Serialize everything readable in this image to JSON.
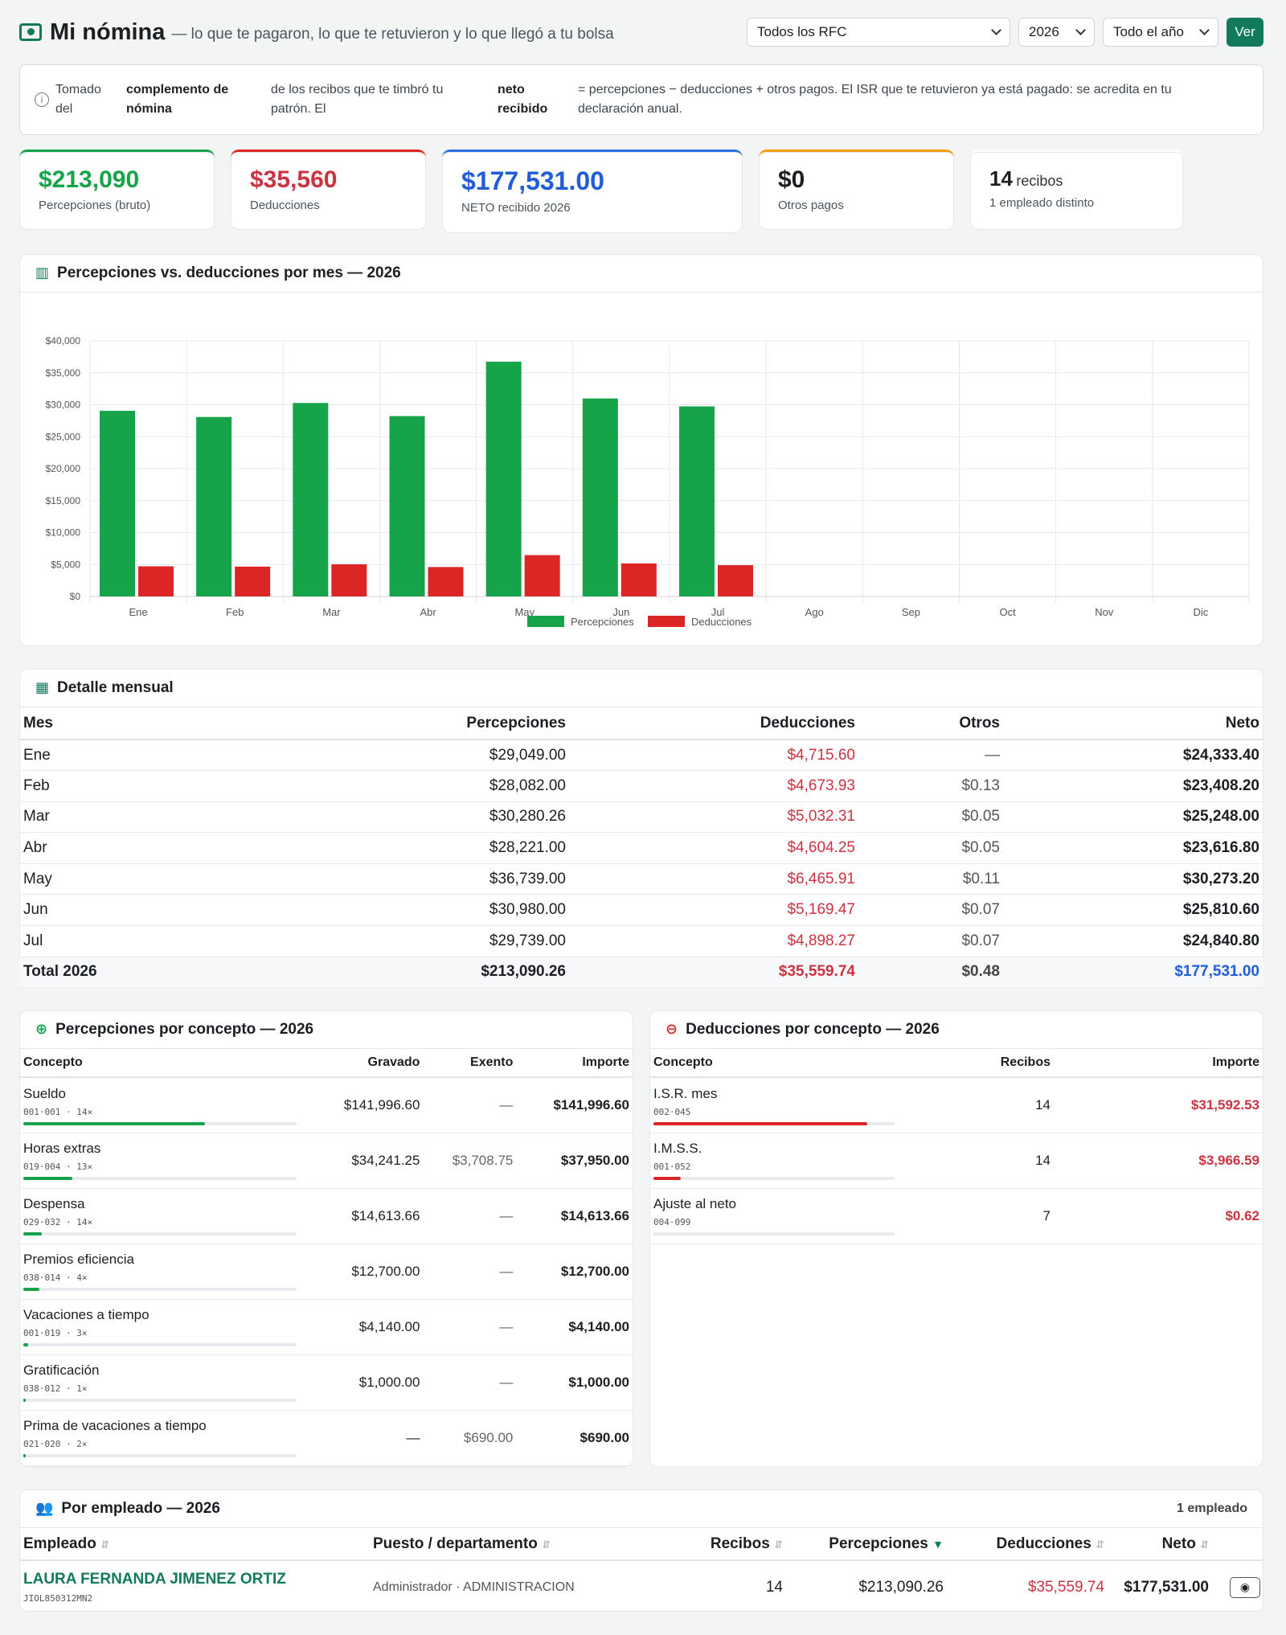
{
  "header": {
    "title": "Mi nómina",
    "subtitle": "— lo que te pagaron, lo que te retuvieron y lo que llegó a tu bolsa",
    "rfc_select": "Todos los RFC",
    "year_select": "2026",
    "period_select": "Todo el año",
    "ver_label": "Ver"
  },
  "info": {
    "c1": "Tomado del",
    "c2": "complemento de nómina",
    "c3": "de los recibos que te timbró tu patrón. El",
    "c4": "neto recibido",
    "c5": "= percepciones − deducciones + otros pagos. El ISR que te retuvieron ya está pagado: se acredita en tu declaración anual."
  },
  "cards": {
    "percepciones_value": "$213,090",
    "percepciones_label": "Percepciones (bruto)",
    "deducciones_value": "$35,560",
    "deducciones_label": "Deducciones",
    "neto_value": "$177,531.00",
    "neto_label": "NETO recibido 2026",
    "otros_value": "$0",
    "otros_label": "Otros pagos",
    "recibos_value": "14",
    "recibos_unit": "recibos",
    "recibos_label": "1 empleado distinto"
  },
  "chart_panel": {
    "title": "Percepciones vs. deducciones por mes — 2026"
  },
  "chart_data": {
    "type": "bar",
    "categories": [
      "Ene",
      "Feb",
      "Mar",
      "Abr",
      "May",
      "Jun",
      "Jul",
      "Ago",
      "Sep",
      "Oct",
      "Nov",
      "Dic"
    ],
    "series": [
      {
        "name": "Percepciones",
        "color": "#16a34a",
        "values": [
          29049,
          28082,
          30280.26,
          28221,
          36739,
          30980,
          29739,
          0,
          0,
          0,
          0,
          0
        ]
      },
      {
        "name": "Deducciones",
        "color": "#dc2626",
        "values": [
          4715.6,
          4673.93,
          5032.31,
          4604.25,
          6465.91,
          5169.47,
          4898.27,
          0,
          0,
          0,
          0,
          0
        ]
      }
    ],
    "y_ticks": [
      "$0",
      "$5,000",
      "$10,000",
      "$15,000",
      "$20,000",
      "$25,000",
      "$30,000",
      "$35,000",
      "$40,000"
    ],
    "ylim": [
      0,
      40000
    ],
    "legend": "bottom-center",
    "grid": true
  },
  "monthly": {
    "title": "Detalle mensual",
    "headers": [
      "Mes",
      "Percepciones",
      "Deducciones",
      "Otros",
      "Neto"
    ],
    "rows": [
      [
        "Ene",
        "$29,049.00",
        "$4,715.60",
        "—",
        "$24,333.40"
      ],
      [
        "Feb",
        "$28,082.00",
        "$4,673.93",
        "$0.13",
        "$23,408.20"
      ],
      [
        "Mar",
        "$30,280.26",
        "$5,032.31",
        "$0.05",
        "$25,248.00"
      ],
      [
        "Abr",
        "$28,221.00",
        "$4,604.25",
        "$0.05",
        "$23,616.80"
      ],
      [
        "May",
        "$36,739.00",
        "$6,465.91",
        "$0.11",
        "$30,273.20"
      ],
      [
        "Jun",
        "$30,980.00",
        "$5,169.47",
        "$0.07",
        "$25,810.60"
      ],
      [
        "Jul",
        "$29,739.00",
        "$4,898.27",
        "$0.07",
        "$24,840.80"
      ]
    ],
    "total": [
      "Total 2026",
      "$213,090.26",
      "$35,559.74",
      "$0.48",
      "$177,531.00"
    ]
  },
  "percep": {
    "title": "Percepciones por concepto — 2026",
    "headers": [
      "Concepto",
      "Gravado",
      "Exento",
      "Importe"
    ],
    "rows": [
      {
        "name": "Sueldo",
        "code": "001·001 · 14×",
        "gravado": "$141,996.60",
        "exento": "—",
        "importe": "$141,996.60",
        "share": 0.666
      },
      {
        "name": "Horas extras",
        "code": "019·004 · 13×",
        "gravado": "$34,241.25",
        "exento": "$3,708.75",
        "importe": "$37,950.00",
        "share": 0.178
      },
      {
        "name": "Despensa",
        "code": "029·032 · 14×",
        "gravado": "$14,613.66",
        "exento": "—",
        "importe": "$14,613.66",
        "share": 0.069
      },
      {
        "name": "Premios eficiencia",
        "code": "038·014 · 4×",
        "gravado": "$12,700.00",
        "exento": "—",
        "importe": "$12,700.00",
        "share": 0.06
      },
      {
        "name": "Vacaciones a tiempo",
        "code": "001·019 · 3×",
        "gravado": "$4,140.00",
        "exento": "—",
        "importe": "$4,140.00",
        "share": 0.019
      },
      {
        "name": "Gratificación",
        "code": "038·012 · 1×",
        "gravado": "$1,000.00",
        "exento": "—",
        "importe": "$1,000.00",
        "share": 0.005
      },
      {
        "name": "Prima de vacaciones a tiempo",
        "code": "021·020 · 2×",
        "gravado": "—",
        "exento": "$690.00",
        "importe": "$690.00",
        "share": 0.003
      }
    ]
  },
  "deduc": {
    "title": "Deducciones por concepto — 2026",
    "headers": [
      "Concepto",
      "Recibos",
      "Importe"
    ],
    "rows": [
      {
        "name": "I.S.R. mes",
        "code": "002·045",
        "recibos": "14",
        "importe": "$31,592.53",
        "share": 0.888
      },
      {
        "name": "I.M.S.S.",
        "code": "001·052",
        "recibos": "14",
        "importe": "$3,966.59",
        "share": 0.112
      },
      {
        "name": "Ajuste al neto",
        "code": "004·099",
        "recibos": "7",
        "importe": "$0.62",
        "share": 0.0
      }
    ]
  },
  "employees": {
    "title": "Por empleado — 2026",
    "count_label": "1 empleado",
    "headers": [
      "Empleado",
      "Puesto / departamento",
      "Recibos",
      "Percepciones",
      "Deducciones",
      "Neto"
    ],
    "rows": [
      {
        "name": "LAURA FERNANDA JIMENEZ ORTIZ",
        "rfc": "JIOL850312MN2",
        "puesto": "Administrador · ADMINISTRACION",
        "recibos": "14",
        "percepciones": "$213,090.26",
        "deducciones": "$35,559.74",
        "neto": "$177,531.00"
      }
    ]
  }
}
